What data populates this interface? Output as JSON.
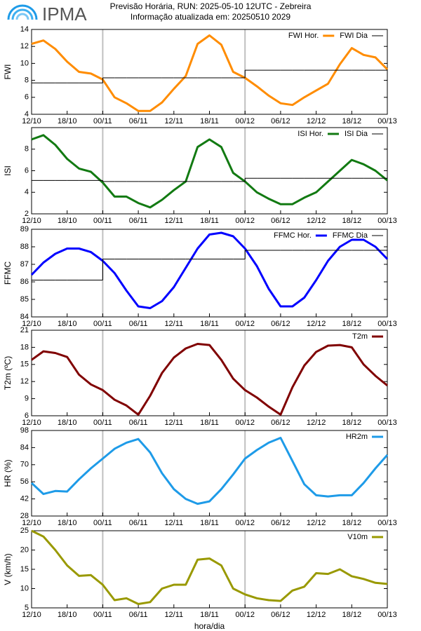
{
  "header": {
    "logo": "IPMA",
    "title": "Previsão Horária, RUN: 2025-05-10 12UTC - Zebreira",
    "subtitle": "Informação atualizada em: 20250510 2029"
  },
  "chart_data": [
    {
      "type": "line",
      "y_label": "FWI",
      "legend": "top-right",
      "x": [
        0,
        2,
        4,
        6,
        8,
        10,
        12,
        14,
        16,
        18,
        20,
        22,
        24,
        26,
        28,
        30,
        32,
        34,
        36,
        38,
        40,
        42,
        44,
        46,
        48,
        50,
        52,
        54,
        56,
        58,
        60
      ],
      "xlim": [
        0,
        60
      ],
      "xticks": [
        {
          "value": 0,
          "label": "12/10"
        },
        {
          "value": 6,
          "label": "18/10"
        },
        {
          "value": 12,
          "label": "00/11"
        },
        {
          "value": 18,
          "label": "06/11"
        },
        {
          "value": 24,
          "label": "12/11"
        },
        {
          "value": 30,
          "label": "18/11"
        },
        {
          "value": 36,
          "label": "00/12"
        },
        {
          "value": 42,
          "label": "06/12"
        },
        {
          "value": 48,
          "label": "12/12"
        },
        {
          "value": 54,
          "label": "18/12"
        },
        {
          "value": 60,
          "label": "00/13"
        }
      ],
      "ylim": [
        4,
        14
      ],
      "yticks": [
        4,
        6,
        8,
        10,
        12,
        14
      ],
      "series": [
        {
          "name": "FWI Hor.",
          "color": "#ff8c00",
          "values": [
            12.3,
            12.7,
            11.7,
            10.2,
            9.0,
            8.8,
            8.1,
            6.0,
            5.3,
            4.4,
            4.4,
            5.4,
            7.0,
            8.5,
            12.3,
            13.3,
            12.2,
            9.0,
            8.3,
            7.3,
            6.2,
            5.3,
            5.1,
            6.0,
            6.8,
            7.6,
            9.9,
            11.8,
            11.0,
            10.7,
            9.3
          ]
        },
        {
          "name": "FWI Dia",
          "color": "#000000",
          "step": "after",
          "values": [
            7.7,
            7.7,
            7.7,
            7.7,
            7.7,
            7.7,
            8.3,
            8.3,
            8.3,
            8.3,
            8.3,
            8.3,
            8.3,
            8.3,
            8.3,
            8.3,
            8.3,
            8.3,
            9.2,
            9.2,
            9.2,
            9.2,
            9.2,
            9.2,
            9.2,
            9.2,
            9.2,
            9.2,
            9.2,
            9.2,
            9.2
          ]
        }
      ]
    },
    {
      "type": "line",
      "y_label": "ISI",
      "legend": "top-right",
      "x": [
        0,
        2,
        4,
        6,
        8,
        10,
        12,
        14,
        16,
        18,
        20,
        22,
        24,
        26,
        28,
        30,
        32,
        34,
        36,
        38,
        40,
        42,
        44,
        46,
        48,
        50,
        52,
        54,
        56,
        58,
        60
      ],
      "xlim": [
        0,
        60
      ],
      "xticks": [
        {
          "value": 0,
          "label": "12/10"
        },
        {
          "value": 6,
          "label": "18/10"
        },
        {
          "value": 12,
          "label": "00/11"
        },
        {
          "value": 18,
          "label": "06/11"
        },
        {
          "value": 24,
          "label": "12/11"
        },
        {
          "value": 30,
          "label": "18/11"
        },
        {
          "value": 36,
          "label": "00/12"
        },
        {
          "value": 42,
          "label": "06/12"
        },
        {
          "value": 48,
          "label": "12/12"
        },
        {
          "value": 54,
          "label": "18/12"
        },
        {
          "value": 60,
          "label": "00/13"
        }
      ],
      "ylim": [
        2,
        10
      ],
      "yticks": [
        2,
        4,
        6,
        8
      ],
      "series": [
        {
          "name": "ISI Hor.",
          "color": "#127a12",
          "values": [
            8.9,
            9.3,
            8.4,
            7.1,
            6.2,
            5.9,
            4.9,
            3.6,
            3.6,
            3.0,
            2.6,
            3.3,
            4.2,
            5.0,
            8.2,
            8.9,
            8.2,
            5.8,
            5.0,
            4.0,
            3.4,
            2.9,
            2.9,
            3.5,
            4.0,
            5.0,
            6.0,
            7.0,
            6.6,
            6.0,
            5.1
          ]
        },
        {
          "name": "ISI Dia",
          "color": "#000000",
          "step": "after",
          "values": [
            5.1,
            5.1,
            5.1,
            5.1,
            5.1,
            5.1,
            5.0,
            5.0,
            5.0,
            5.0,
            5.0,
            5.0,
            5.0,
            5.0,
            5.0,
            5.0,
            5.0,
            5.0,
            5.3,
            5.3,
            5.3,
            5.3,
            5.3,
            5.3,
            5.3,
            5.3,
            5.3,
            5.3,
            5.3,
            5.3,
            5.3
          ]
        }
      ]
    },
    {
      "type": "line",
      "y_label": "FFMC",
      "legend": "top-right",
      "x": [
        0,
        2,
        4,
        6,
        8,
        10,
        12,
        14,
        16,
        18,
        20,
        22,
        24,
        26,
        28,
        30,
        32,
        34,
        36,
        38,
        40,
        42,
        44,
        46,
        48,
        50,
        52,
        54,
        56,
        58,
        60
      ],
      "xlim": [
        0,
        60
      ],
      "xticks": [
        {
          "value": 0,
          "label": "12/10"
        },
        {
          "value": 6,
          "label": "18/10"
        },
        {
          "value": 12,
          "label": "00/11"
        },
        {
          "value": 18,
          "label": "06/11"
        },
        {
          "value": 24,
          "label": "12/11"
        },
        {
          "value": 30,
          "label": "18/11"
        },
        {
          "value": 36,
          "label": "00/12"
        },
        {
          "value": 42,
          "label": "06/12"
        },
        {
          "value": 48,
          "label": "12/12"
        },
        {
          "value": 54,
          "label": "18/12"
        },
        {
          "value": 60,
          "label": "00/13"
        }
      ],
      "ylim": [
        84,
        89
      ],
      "yticks": [
        84,
        85,
        86,
        87,
        88,
        89
      ],
      "series": [
        {
          "name": "FFMC Hor.",
          "color": "#0000ff",
          "values": [
            86.4,
            87.1,
            87.6,
            87.9,
            87.9,
            87.7,
            87.2,
            86.5,
            85.5,
            84.6,
            84.5,
            84.9,
            85.7,
            86.8,
            87.9,
            88.7,
            88.8,
            88.6,
            87.9,
            86.9,
            85.6,
            84.6,
            84.6,
            85.1,
            86.1,
            87.2,
            88.0,
            88.4,
            88.4,
            88.0,
            87.3
          ]
        },
        {
          "name": "FFMC Dia",
          "color": "#000000",
          "step": "after",
          "values": [
            86.1,
            86.1,
            86.1,
            86.1,
            86.1,
            86.1,
            87.3,
            87.3,
            87.3,
            87.3,
            87.3,
            87.3,
            87.3,
            87.3,
            87.3,
            87.3,
            87.3,
            87.3,
            87.8,
            87.8,
            87.8,
            87.8,
            87.8,
            87.8,
            87.8,
            87.8,
            87.8,
            87.8,
            87.8,
            87.8,
            87.8
          ]
        }
      ]
    },
    {
      "type": "line",
      "y_label": "T2m (ºC)",
      "legend": "top-right",
      "x": [
        0,
        2,
        4,
        6,
        8,
        10,
        12,
        14,
        16,
        18,
        20,
        22,
        24,
        26,
        28,
        30,
        32,
        34,
        36,
        38,
        40,
        42,
        44,
        46,
        48,
        50,
        52,
        54,
        56,
        58,
        60
      ],
      "xlim": [
        0,
        60
      ],
      "xticks": [
        {
          "value": 0,
          "label": "12/10"
        },
        {
          "value": 6,
          "label": "18/10"
        },
        {
          "value": 12,
          "label": "00/11"
        },
        {
          "value": 18,
          "label": "06/11"
        },
        {
          "value": 24,
          "label": "12/11"
        },
        {
          "value": 30,
          "label": "18/11"
        },
        {
          "value": 36,
          "label": "00/12"
        },
        {
          "value": 42,
          "label": "06/12"
        },
        {
          "value": 48,
          "label": "12/12"
        },
        {
          "value": 54,
          "label": "18/12"
        },
        {
          "value": 60,
          "label": "00/13"
        }
      ],
      "ylim": [
        6,
        21
      ],
      "yticks": [
        6,
        9,
        12,
        15,
        18,
        21
      ],
      "series": [
        {
          "name": "T2m",
          "color": "#800000",
          "values": [
            15.8,
            17.3,
            17.0,
            16.3,
            13.2,
            11.5,
            10.5,
            8.8,
            7.8,
            6.2,
            9.5,
            13.5,
            16.2,
            17.8,
            18.6,
            18.4,
            15.8,
            12.5,
            10.5,
            9.2,
            7.6,
            6.2,
            11.0,
            14.8,
            17.2,
            18.3,
            18.4,
            18.0,
            15.0,
            13.0,
            11.3
          ]
        }
      ]
    },
    {
      "type": "line",
      "y_label": "HR (%)",
      "legend": "top-right",
      "x": [
        0,
        2,
        4,
        6,
        8,
        10,
        12,
        14,
        16,
        18,
        20,
        22,
        24,
        26,
        28,
        30,
        32,
        34,
        36,
        38,
        40,
        42,
        44,
        46,
        48,
        50,
        52,
        54,
        56,
        58,
        60
      ],
      "xlim": [
        0,
        60
      ],
      "xticks": [
        {
          "value": 0,
          "label": "12/10"
        },
        {
          "value": 6,
          "label": "18/10"
        },
        {
          "value": 12,
          "label": "00/11"
        },
        {
          "value": 18,
          "label": "06/11"
        },
        {
          "value": 24,
          "label": "12/11"
        },
        {
          "value": 30,
          "label": "18/11"
        },
        {
          "value": 36,
          "label": "00/12"
        },
        {
          "value": 42,
          "label": "06/12"
        },
        {
          "value": 48,
          "label": "12/12"
        },
        {
          "value": 54,
          "label": "18/12"
        },
        {
          "value": 60,
          "label": "00/13"
        }
      ],
      "ylim": [
        28,
        98
      ],
      "yticks": [
        28,
        42,
        56,
        70,
        84,
        98
      ],
      "series": [
        {
          "name": "HR2m",
          "color": "#1e9be8",
          "values": [
            55,
            46,
            48.5,
            48,
            58,
            67,
            75,
            83,
            88,
            91,
            80,
            63,
            50,
            42,
            38,
            40,
            50,
            62,
            75,
            82,
            88,
            92,
            73,
            54,
            45,
            44,
            45,
            45,
            55,
            67,
            78
          ]
        }
      ]
    },
    {
      "type": "line",
      "y_label": "V (km/h)",
      "x_label": "hora/dia",
      "legend": "top-right",
      "x": [
        0,
        2,
        4,
        6,
        8,
        10,
        12,
        14,
        16,
        18,
        20,
        22,
        24,
        26,
        28,
        30,
        32,
        34,
        36,
        38,
        40,
        42,
        44,
        46,
        48,
        50,
        52,
        54,
        56,
        58,
        60
      ],
      "xlim": [
        0,
        60
      ],
      "xticks": [
        {
          "value": 0,
          "label": "12/10"
        },
        {
          "value": 6,
          "label": "18/10"
        },
        {
          "value": 12,
          "label": "00/11"
        },
        {
          "value": 18,
          "label": "06/11"
        },
        {
          "value": 24,
          "label": "12/11"
        },
        {
          "value": 30,
          "label": "18/11"
        },
        {
          "value": 36,
          "label": "00/12"
        },
        {
          "value": 42,
          "label": "06/12"
        },
        {
          "value": 48,
          "label": "12/12"
        },
        {
          "value": 54,
          "label": "18/12"
        },
        {
          "value": 60,
          "label": "00/13"
        }
      ],
      "ylim": [
        5,
        25
      ],
      "yticks": [
        5,
        10,
        15,
        20,
        25
      ],
      "series": [
        {
          "name": "V10m",
          "color": "#999900",
          "values": [
            25,
            23.5,
            20.0,
            16.0,
            13.3,
            13.5,
            11.0,
            7.0,
            7.5,
            6.0,
            6.5,
            10.0,
            11.0,
            11.0,
            17.5,
            17.8,
            16.0,
            10.0,
            8.5,
            7.5,
            7.0,
            6.8,
            9.5,
            10.5,
            14.0,
            13.8,
            15.0,
            13.2,
            12.5,
            11.5,
            11.2
          ]
        }
      ]
    }
  ]
}
